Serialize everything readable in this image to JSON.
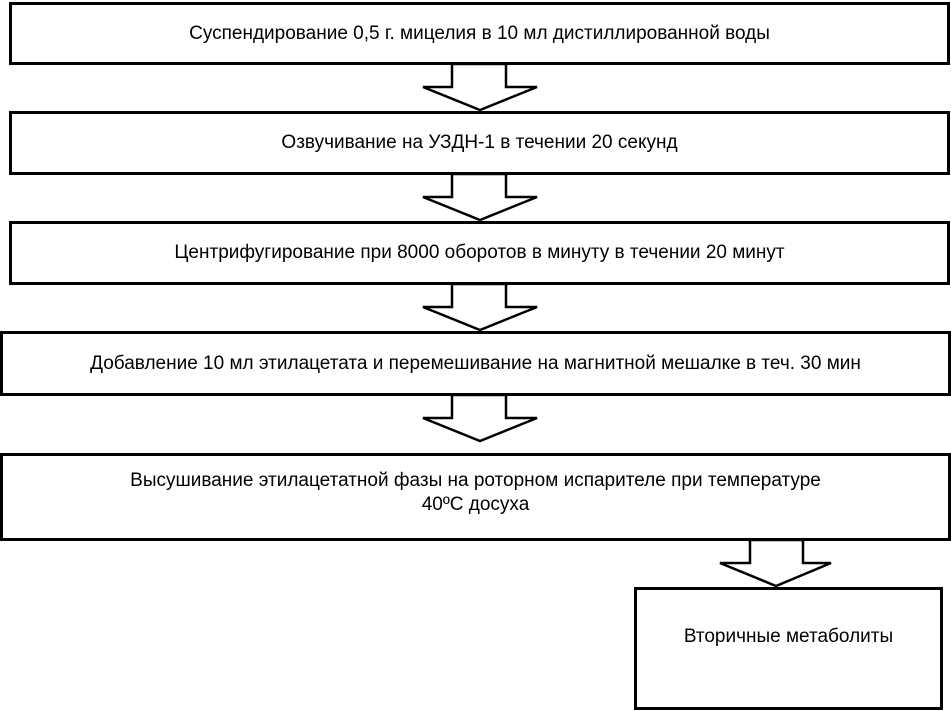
{
  "steps": [
    {
      "text": "Суспендирование 0,5 г. мицелия в 10 мл дистиллированной воды"
    },
    {
      "text": "Озвучивание на УЗДН-1 в течении 20 секунд"
    },
    {
      "text": "Центрифугирование при 8000 оборотов в минуту в течении 20 минут"
    },
    {
      "text": "Добавление 10 мл этилацетата и перемешивание на магнитной мешалке в теч. 30 мин"
    },
    {
      "text": "Высушивание этилацетатной фазы на роторном испарителе при температуре",
      "text2": "40ºС досуха"
    }
  ],
  "result": {
    "text": "Вторичные метаболиты"
  },
  "colors": {
    "stroke": "#000000",
    "fill": "#ffffff"
  }
}
